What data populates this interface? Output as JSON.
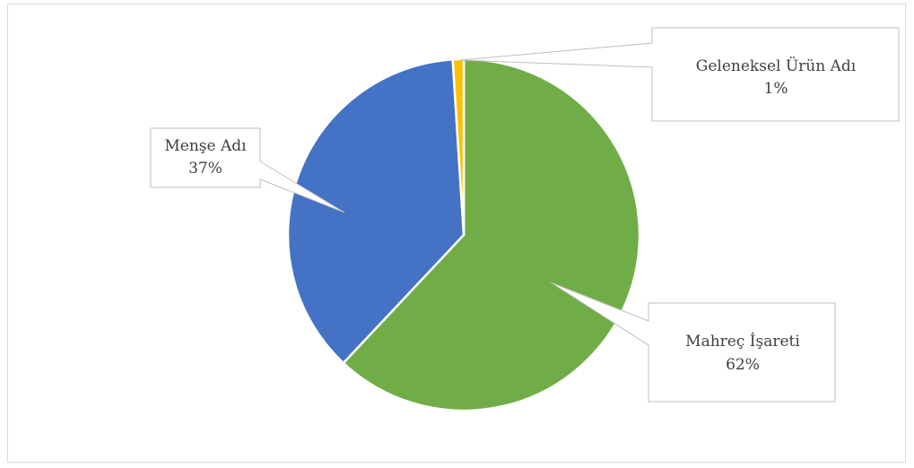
{
  "chart_data": {
    "type": "pie",
    "slices": [
      {
        "label": "Mahreç İşareti",
        "value": 62,
        "value_label": "62%",
        "color": "#70ad47"
      },
      {
        "label": "Menşe Adı",
        "value": 37,
        "value_label": "37%",
        "color": "#4472c4"
      },
      {
        "label": "Geleneksel Ürün Adı",
        "value": 1,
        "value_label": "1%",
        "color": "#ffc000"
      }
    ],
    "legend": "none",
    "data_labels": "callouts"
  }
}
